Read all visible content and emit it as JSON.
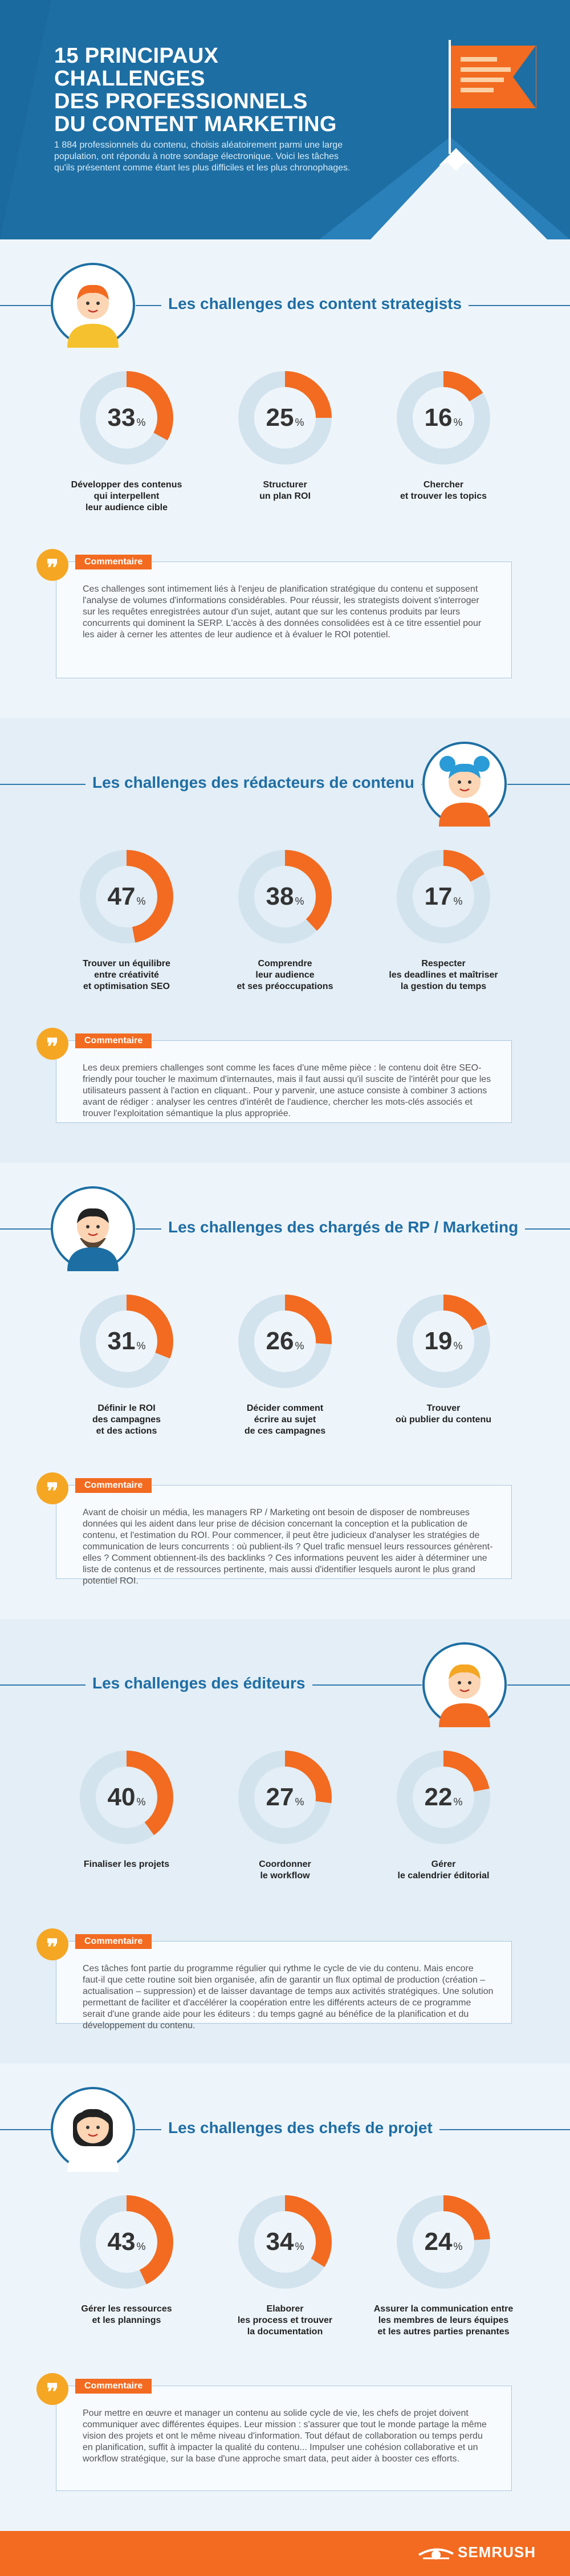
{
  "header": {
    "title_lines": [
      "15 PRINCIPAUX CHALLENGES",
      "DES PROFESSIONNELS",
      "DU CONTENT MARKETING"
    ],
    "intro": "1 884 professionnels du contenu, choisis aléatoirement parmi une large population, ont répondu à notre sondage électronique. Voici les tâches qu'ils présentent comme étant les plus difficiles et les plus chronophages."
  },
  "comment_label": "Commentaire",
  "quote_glyph": "❞",
  "colors": {
    "accent": "#f26b21",
    "ring": "#d2e3ee",
    "title": "#1f6ea5",
    "header": "#1d6ea3"
  },
  "sections": [
    {
      "title": "Les challenges des content strategists",
      "stats": [
        {
          "value": 33,
          "unit": "%",
          "label": "Développer des contenus\nqui interpellent\nleur audience cible"
        },
        {
          "value": 25,
          "unit": "%",
          "label": "Structurer\nun plan ROI"
        },
        {
          "value": 16,
          "unit": "%",
          "label": "Chercher\net trouver les topics"
        }
      ],
      "comment": "Ces challenges sont intimement liés à l'enjeu de planification stratégique du contenu et supposent l'analyse de volumes d'informations considérables. Pour réussir, les strategists doivent s'interroger sur les requêtes enregistrées autour d'un sujet, autant que sur les contenus produits par leurs concurrents qui dominent la SERP. L'accès à des données consolidées est à ce titre essentiel pour les aider à cerner les attentes de leur audience et à évaluer le ROI potentiel."
    },
    {
      "title": "Les challenges des rédacteurs de contenu",
      "stats": [
        {
          "value": 47,
          "unit": "%",
          "label": "Trouver un équilibre\nentre créativité\net optimisation SEO"
        },
        {
          "value": 38,
          "unit": "%",
          "label": "Comprendre\nleur audience\net ses préoccupations"
        },
        {
          "value": 17,
          "unit": "%",
          "label": "Respecter\nles deadlines et maîtriser\nla gestion du temps"
        }
      ],
      "comment": "Les deux premiers challenges sont comme les faces d'une même pièce : le contenu doit être SEO-friendly pour toucher le maximum d'internautes, mais il faut aussi qu'il suscite de l'intérêt pour que les utilisateurs passent à l'action en cliquant.. Pour y parvenir, une astuce consiste à combiner 3 actions avant de rédiger : analyser les centres d'intérêt de l'audience, chercher les mots-clés associés et trouver l'exploitation sémantique la plus appropriée."
    },
    {
      "title": "Les challenges des chargés de RP / Marketing",
      "stats": [
        {
          "value": 31,
          "unit": "%",
          "label": "Définir le ROI\ndes campagnes\net des actions"
        },
        {
          "value": 26,
          "unit": "%",
          "label": "Décider comment\nécrire au sujet\nde ces campagnes"
        },
        {
          "value": 19,
          "unit": "%",
          "label": "Trouver\noù publier du contenu"
        }
      ],
      "comment": "Avant de choisir un média, les managers RP / Marketing ont besoin de disposer de nombreuses données qui les aident dans leur prise de décision concernant la conception et la publication de contenu, et l'estimation du ROI. Pour commencer, il peut être judicieux d'analyser les stratégies de communication de leurs concurrents : où publient-ils ? Quel trafic mensuel leurs ressources génèrent-elles ? Comment obtiennent-ils des backlinks ? Ces informations peuvent les aider à déterminer une liste de contenus et de ressources pertinente, mais aussi d'identifier lesquels auront le plus grand potentiel ROI."
    },
    {
      "title": "Les challenges des éditeurs",
      "stats": [
        {
          "value": 40,
          "unit": "%",
          "label": "Finaliser les projets"
        },
        {
          "value": 27,
          "unit": "%",
          "label": "Coordonner\nle workflow"
        },
        {
          "value": 22,
          "unit": "%",
          "label": "Gérer\nle calendrier éditorial"
        }
      ],
      "comment": "Ces tâches font partie du programme régulier qui rythme le cycle de vie du contenu. Mais encore faut-il que cette routine soit bien organisée, afin de garantir un flux optimal de production (création – actualisation – suppression) et de laisser davantage de temps aux activités stratégiques. Une solution permettant de faciliter et d'accélérer la coopération entre les différents acteurs de ce programme serait d'une grande aide pour les éditeurs : du temps gagné au bénéfice de la planification et du développement du contenu."
    },
    {
      "title": "Les challenges des chefs de projet",
      "stats": [
        {
          "value": 43,
          "unit": "%",
          "label": "Gérer les ressources\net les plannings"
        },
        {
          "value": 34,
          "unit": "%",
          "label": "Elaborer\nles process et trouver\nla documentation"
        },
        {
          "value": 24,
          "unit": "%",
          "label": "Assurer la communication entre\nles membres de leurs équipes\net les autres parties prenantes"
        }
      ],
      "comment": "Pour mettre en œuvre et manager un contenu au solide cycle de vie, les chefs de projet doivent communiquer avec différentes équipes. Leur mission : s'assurer que tout le monde partage la même vision des projets et ont le même niveau d'information. Tout défaut de collaboration ou temps perdu en planification, suffit à impacter la qualité du contenu... Impulser une cohésion collaborative et un workflow stratégique, sur la base d'une approche smart data, peut aider à booster ces efforts."
    }
  ],
  "footer": {
    "brand": "SEMRUSH"
  }
}
